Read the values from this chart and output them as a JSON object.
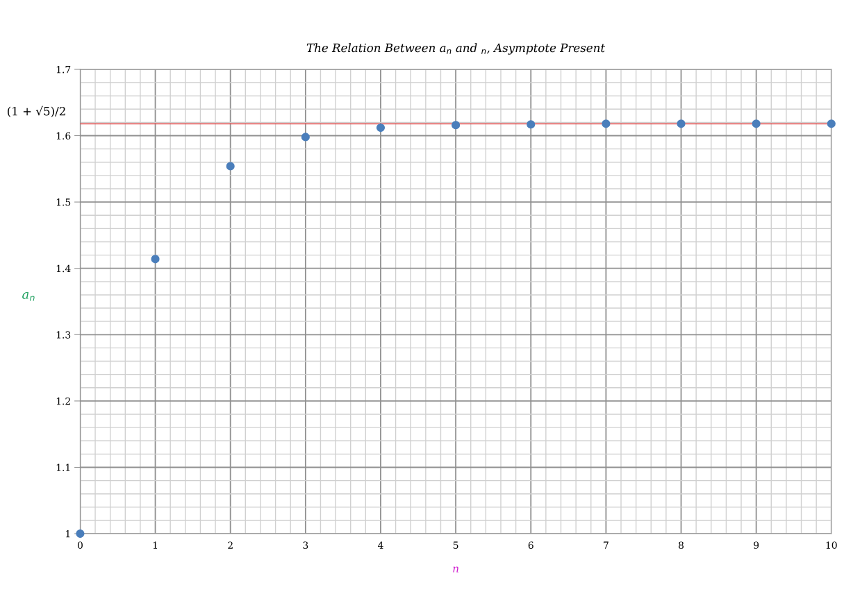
{
  "chart_data": {
    "type": "scatter",
    "title": "The Relation Between a$_{n}$ and $_{n}$, Asymptote Present",
    "xlabel": "n",
    "ylabel": "a$_{n}$",
    "x": [
      0,
      1,
      2,
      3,
      4,
      5,
      6,
      7,
      8,
      9,
      10
    ],
    "series": [
      {
        "color": "#4a7ebb",
        "values": [
          1.0,
          1.414,
          1.554,
          1.598,
          1.612,
          1.616,
          1.617,
          1.618,
          1.618,
          1.618,
          1.618
        ]
      }
    ],
    "xlim": [
      0,
      10
    ],
    "xticks": [
      0,
      1,
      2,
      3,
      4,
      5,
      6,
      7,
      8,
      9,
      10
    ],
    "ylim": [
      1,
      1.7
    ],
    "yticks": [
      1,
      1.1,
      1.2,
      1.3,
      1.4,
      1.5,
      1.6,
      1.7
    ],
    "ref_lines": [
      {
        "axis": "y",
        "value": 1.618,
        "label": "(1 + √5)/2",
        "color": "#e06060"
      }
    ],
    "grid": true,
    "marker": "circle",
    "legend": false
  }
}
